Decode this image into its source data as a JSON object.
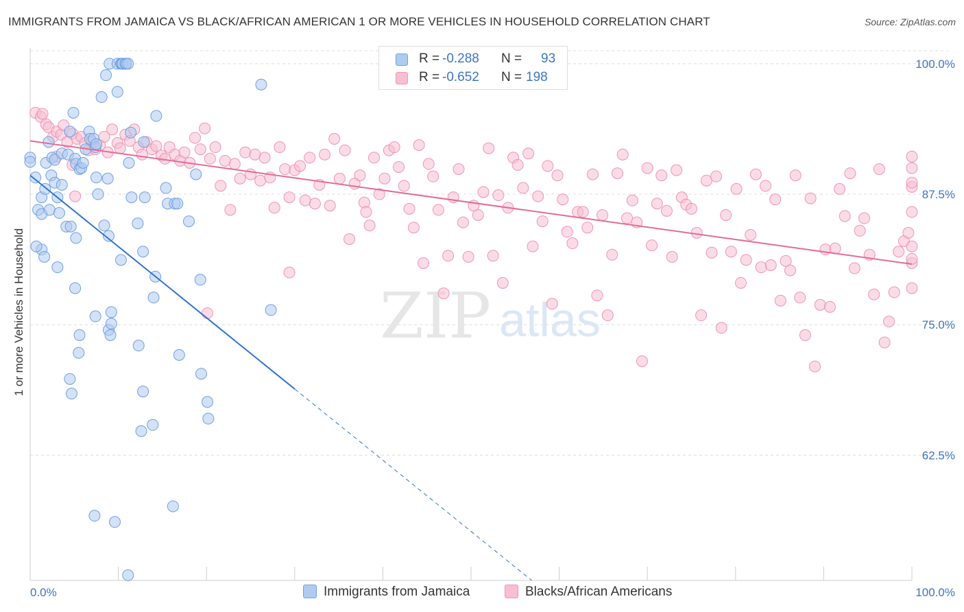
{
  "header": {
    "title": "IMMIGRANTS FROM JAMAICA VS BLACK/AFRICAN AMERICAN 1 OR MORE VEHICLES IN HOUSEHOLD CORRELATION CHART",
    "source": "Source: ZipAtlas.com"
  },
  "legend": {
    "series1": {
      "r_label": "R =",
      "r_value": "-0.288",
      "n_label": "N =",
      "n_value": "93"
    },
    "series2": {
      "r_label": "R =",
      "r_value": "-0.652",
      "n_label": "N =",
      "n_value": "198"
    }
  },
  "watermark": {
    "zip": "ZIP",
    "atlas": "atlas"
  },
  "chart_data": {
    "type": "scatter",
    "title": "IMMIGRANTS FROM JAMAICA VS BLACK/AFRICAN AMERICAN 1 OR MORE VEHICLES IN HOUSEHOLD CORRELATION CHART",
    "xlabel": "",
    "ylabel": "1 or more Vehicles in Household",
    "xlim": [
      0,
      100
    ],
    "ylim": [
      50.5,
      101.5
    ],
    "x_tick_labels": [
      "0.0%",
      "100.0%"
    ],
    "y_ticks": [
      100.0,
      87.5,
      75.0,
      62.5
    ],
    "y_tick_labels": [
      "100.0%",
      "87.5%",
      "75.0%",
      "62.5%"
    ],
    "grid": true,
    "legend_position": "top-center",
    "colors": {
      "jamaica_fill": "#aecbf0",
      "jamaica_stroke": "#6f9fe0",
      "jamaica_line": "#2f72cf",
      "black_fill": "#f8bfd2",
      "black_stroke": "#ec94b3",
      "black_line": "#e46a96",
      "grid": "#dcdcdc",
      "tick_label": "#3b74c4"
    },
    "series": [
      {
        "name": "Immigrants from Jamaica",
        "trend": {
          "x0": 0,
          "y0": 89.3,
          "x1": 100,
          "y1": 21.1,
          "solid_until_x": 30
        },
        "points": [
          [
            0.0,
            91.0
          ],
          [
            0.0,
            90.6
          ],
          [
            0.6,
            89.1
          ],
          [
            0.9,
            86.0
          ],
          [
            1.3,
            87.2
          ],
          [
            1.3,
            85.6
          ],
          [
            1.3,
            82.2
          ],
          [
            1.6,
            81.5
          ],
          [
            1.8,
            90.5
          ],
          [
            2.1,
            92.5
          ],
          [
            2.4,
            89.3
          ],
          [
            2.5,
            91.0
          ],
          [
            2.8,
            90.8
          ],
          [
            2.8,
            88.6
          ],
          [
            3.1,
            87.2
          ],
          [
            3.6,
            91.4
          ],
          [
            3.6,
            88.4
          ],
          [
            4.1,
            84.4
          ],
          [
            4.3,
            91.3
          ],
          [
            4.5,
            93.5
          ],
          [
            4.9,
            95.3
          ],
          [
            5.1,
            90.9
          ],
          [
            5.2,
            90.4
          ],
          [
            5.6,
            89.9
          ],
          [
            5.8,
            90.0
          ],
          [
            6.0,
            90.5
          ],
          [
            6.3,
            91.8
          ],
          [
            6.7,
            93.5
          ],
          [
            6.8,
            92.8
          ],
          [
            7.2,
            92.8
          ],
          [
            7.4,
            92.0
          ],
          [
            7.5,
            92.3
          ],
          [
            7.5,
            89.1
          ],
          [
            7.7,
            87.5
          ],
          [
            8.1,
            96.8
          ],
          [
            8.4,
            84.5
          ],
          [
            8.6,
            98.9
          ],
          [
            8.8,
            89.0
          ],
          [
            8.9,
            83.5
          ],
          [
            9.0,
            100.0
          ],
          [
            9.9,
            97.3
          ],
          [
            9.9,
            100.0
          ],
          [
            10.3,
            100.0
          ],
          [
            10.4,
            100.0
          ],
          [
            10.5,
            100.0
          ],
          [
            10.8,
            100.0
          ],
          [
            10.9,
            100.0
          ],
          [
            11.1,
            100.0
          ],
          [
            11.2,
            90.5
          ],
          [
            11.4,
            93.4
          ],
          [
            11.5,
            87.2
          ],
          [
            12.2,
            84.7
          ],
          [
            12.9,
            92.5
          ],
          [
            13.0,
            87.2
          ],
          [
            14.3,
            95.0
          ],
          [
            15.4,
            88.1
          ],
          [
            15.6,
            86.6
          ],
          [
            16.4,
            86.6
          ],
          [
            16.7,
            86.6
          ],
          [
            18.0,
            84.9
          ],
          [
            18.8,
            89.4
          ],
          [
            26.2,
            98.0
          ],
          [
            27.3,
            76.4
          ],
          [
            7.4,
            75.8
          ],
          [
            8.9,
            74.5
          ],
          [
            9.1,
            74.0
          ],
          [
            1.7,
            88.0
          ],
          [
            2.2,
            86.0
          ],
          [
            3.3,
            85.7
          ],
          [
            4.6,
            84.4
          ],
          [
            5.2,
            83.3
          ],
          [
            0.7,
            82.5
          ],
          [
            3.1,
            80.5
          ],
          [
            5.1,
            78.5
          ],
          [
            9.2,
            75.1
          ],
          [
            12.8,
            82.0
          ],
          [
            14.2,
            79.6
          ],
          [
            14.0,
            77.6
          ],
          [
            19.3,
            79.3
          ],
          [
            10.3,
            81.2
          ],
          [
            9.2,
            76.2
          ],
          [
            5.6,
            74.0
          ],
          [
            5.5,
            72.3
          ],
          [
            12.3,
            73.0
          ],
          [
            16.9,
            72.1
          ],
          [
            19.4,
            70.3
          ],
          [
            4.5,
            69.8
          ],
          [
            4.7,
            68.4
          ],
          [
            12.8,
            68.6
          ],
          [
            20.1,
            67.6
          ],
          [
            20.2,
            66.0
          ],
          [
            13.9,
            65.4
          ],
          [
            12.6,
            64.8
          ],
          [
            16.2,
            57.6
          ],
          [
            7.3,
            56.7
          ],
          [
            9.6,
            56.1
          ],
          [
            11.1,
            51.0
          ]
        ]
      },
      {
        "name": "Blacks/African Americans",
        "trend": {
          "x0": 0,
          "y0": 92.6,
          "x1": 100,
          "y1": 80.8
        },
        "points": [
          [
            0.6,
            95.3
          ],
          [
            1.2,
            94.9
          ],
          [
            1.4,
            95.2
          ],
          [
            1.8,
            94.2
          ],
          [
            2.1,
            93.9
          ],
          [
            2.6,
            93.0
          ],
          [
            3.0,
            93.5
          ],
          [
            3.5,
            93.2
          ],
          [
            3.8,
            94.1
          ],
          [
            4.2,
            92.5
          ],
          [
            4.8,
            93.3
          ],
          [
            5.3,
            92.8
          ],
          [
            5.8,
            93.0
          ],
          [
            6.2,
            92.4
          ],
          [
            6.6,
            91.7
          ],
          [
            7.0,
            92.5
          ],
          [
            7.4,
            91.8
          ],
          [
            7.9,
            92.2
          ],
          [
            8.4,
            93.0
          ],
          [
            8.8,
            91.5
          ],
          [
            9.3,
            93.7
          ],
          [
            9.9,
            92.4
          ],
          [
            10.2,
            91.9
          ],
          [
            10.8,
            93.2
          ],
          [
            11.3,
            92.6
          ],
          [
            11.8,
            93.7
          ],
          [
            12.3,
            92.0
          ],
          [
            12.7,
            91.3
          ],
          [
            13.2,
            92.5
          ],
          [
            13.8,
            91.8
          ],
          [
            14.3,
            92.1
          ],
          [
            14.9,
            91.2
          ],
          [
            15.3,
            90.9
          ],
          [
            15.8,
            92.0
          ],
          [
            16.4,
            91.3
          ],
          [
            17.0,
            90.7
          ],
          [
            17.5,
            91.5
          ],
          [
            18.1,
            90.5
          ],
          [
            18.7,
            92.9
          ],
          [
            19.3,
            91.8
          ],
          [
            19.8,
            93.8
          ],
          [
            20.4,
            90.9
          ],
          [
            21.0,
            92.0
          ],
          [
            21.6,
            88.3
          ],
          [
            22.1,
            90.7
          ],
          [
            22.7,
            86.0
          ],
          [
            23.2,
            90.4
          ],
          [
            23.8,
            89.0
          ],
          [
            24.4,
            91.5
          ],
          [
            25.0,
            89.4
          ],
          [
            25.5,
            91.3
          ],
          [
            26.1,
            88.8
          ],
          [
            26.6,
            91.0
          ],
          [
            27.2,
            89.1
          ],
          [
            27.7,
            86.2
          ],
          [
            28.3,
            92.0
          ],
          [
            28.9,
            89.9
          ],
          [
            29.4,
            87.2
          ],
          [
            30.0,
            89.8
          ],
          [
            30.6,
            90.2
          ],
          [
            31.2,
            86.9
          ],
          [
            31.7,
            91.0
          ],
          [
            32.3,
            86.6
          ],
          [
            32.8,
            88.4
          ],
          [
            33.4,
            91.3
          ],
          [
            34.0,
            86.4
          ],
          [
            34.5,
            92.8
          ],
          [
            35.1,
            89.0
          ],
          [
            35.7,
            91.7
          ],
          [
            36.2,
            83.2
          ],
          [
            36.8,
            88.5
          ],
          [
            37.4,
            89.3
          ],
          [
            37.9,
            86.7
          ],
          [
            38.5,
            84.5
          ],
          [
            39.0,
            91.0
          ],
          [
            39.6,
            87.5
          ],
          [
            40.2,
            89.0
          ],
          [
            40.7,
            91.7
          ],
          [
            41.3,
            92.0
          ],
          [
            41.8,
            90.1
          ],
          [
            42.4,
            88.3
          ],
          [
            43.0,
            86.1
          ],
          [
            43.5,
            84.3
          ],
          [
            44.1,
            92.2
          ],
          [
            44.6,
            80.9
          ],
          [
            45.2,
            90.4
          ],
          [
            45.7,
            89.2
          ],
          [
            46.3,
            86.0
          ],
          [
            46.9,
            78.0
          ],
          [
            47.4,
            81.6
          ],
          [
            48.0,
            87.2
          ],
          [
            48.6,
            89.9
          ],
          [
            49.1,
            84.8
          ],
          [
            49.7,
            81.5
          ],
          [
            50.3,
            86.4
          ],
          [
            50.8,
            85.5
          ],
          [
            51.4,
            87.7
          ],
          [
            52.0,
            91.9
          ],
          [
            52.5,
            81.6
          ],
          [
            53.1,
            87.4
          ],
          [
            53.6,
            79.0
          ],
          [
            54.2,
            86.2
          ],
          [
            54.8,
            91.0
          ],
          [
            55.3,
            90.3
          ],
          [
            55.9,
            88.1
          ],
          [
            56.5,
            91.4
          ],
          [
            57.0,
            82.5
          ],
          [
            57.6,
            87.3
          ],
          [
            58.1,
            84.9
          ],
          [
            58.7,
            90.2
          ],
          [
            59.2,
            77.0
          ],
          [
            59.8,
            89.3
          ],
          [
            60.4,
            87.0
          ],
          [
            60.9,
            83.9
          ],
          [
            61.5,
            82.8
          ],
          [
            62.1,
            85.8
          ],
          [
            62.7,
            85.8
          ],
          [
            63.2,
            84.3
          ],
          [
            63.8,
            89.4
          ],
          [
            64.3,
            77.8
          ],
          [
            64.9,
            85.5
          ],
          [
            65.5,
            75.9
          ],
          [
            66.0,
            81.7
          ],
          [
            66.6,
            89.5
          ],
          [
            67.2,
            91.3
          ],
          [
            67.7,
            85.2
          ],
          [
            68.3,
            86.9
          ],
          [
            68.8,
            84.8
          ],
          [
            69.4,
            71.5
          ],
          [
            70.0,
            90.0
          ],
          [
            70.5,
            82.6
          ],
          [
            71.1,
            86.6
          ],
          [
            71.6,
            89.3
          ],
          [
            72.2,
            85.9
          ],
          [
            72.8,
            81.5
          ],
          [
            73.3,
            89.8
          ],
          [
            73.9,
            87.2
          ],
          [
            74.4,
            86.5
          ],
          [
            75.0,
            86.1
          ],
          [
            75.6,
            83.8
          ],
          [
            76.1,
            75.9
          ],
          [
            76.7,
            88.8
          ],
          [
            77.3,
            81.9
          ],
          [
            77.8,
            89.2
          ],
          [
            78.4,
            74.7
          ],
          [
            78.9,
            85.5
          ],
          [
            79.5,
            82.0
          ],
          [
            80.1,
            88.0
          ],
          [
            80.6,
            79.0
          ],
          [
            81.2,
            81.2
          ],
          [
            81.7,
            83.6
          ],
          [
            82.3,
            89.4
          ],
          [
            82.9,
            80.5
          ],
          [
            83.4,
            88.3
          ],
          [
            84.0,
            80.7
          ],
          [
            84.5,
            87.0
          ],
          [
            85.1,
            77.3
          ],
          [
            85.7,
            81.1
          ],
          [
            86.2,
            80.2
          ],
          [
            86.8,
            89.3
          ],
          [
            87.3,
            77.6
          ],
          [
            87.9,
            74.0
          ],
          [
            88.5,
            87.1
          ],
          [
            89.0,
            71.0
          ],
          [
            89.6,
            76.9
          ],
          [
            90.2,
            82.2
          ],
          [
            90.7,
            76.7
          ],
          [
            91.3,
            82.3
          ],
          [
            91.8,
            88.0
          ],
          [
            92.4,
            85.4
          ],
          [
            93.0,
            89.5
          ],
          [
            93.5,
            80.4
          ],
          [
            94.1,
            84.0
          ],
          [
            94.6,
            85.2
          ],
          [
            95.2,
            81.7
          ],
          [
            95.7,
            77.9
          ],
          [
            96.3,
            89.9
          ],
          [
            96.9,
            73.3
          ],
          [
            97.4,
            75.3
          ],
          [
            98.0,
            78.1
          ],
          [
            98.5,
            82.0
          ],
          [
            99.1,
            83.0
          ],
          [
            99.6,
            83.8
          ],
          [
            100.0,
            78.5
          ],
          [
            100.0,
            80.9
          ],
          [
            100.0,
            88.2
          ],
          [
            100.0,
            91.1
          ],
          [
            100.0,
            81.3
          ],
          [
            100.0,
            82.5
          ],
          [
            100.0,
            85.8
          ],
          [
            100.0,
            88.6
          ],
          [
            100.0,
            90.0
          ],
          [
            5.1,
            87.3
          ],
          [
            3.0,
            91.1
          ],
          [
            4.8,
            90.3
          ],
          [
            29.4,
            80.0
          ],
          [
            38.1,
            85.8
          ],
          [
            20.1,
            76.1
          ]
        ]
      }
    ]
  },
  "bottom_legend": {
    "series1": "Immigrants from Jamaica",
    "series2": "Blacks/African Americans"
  }
}
